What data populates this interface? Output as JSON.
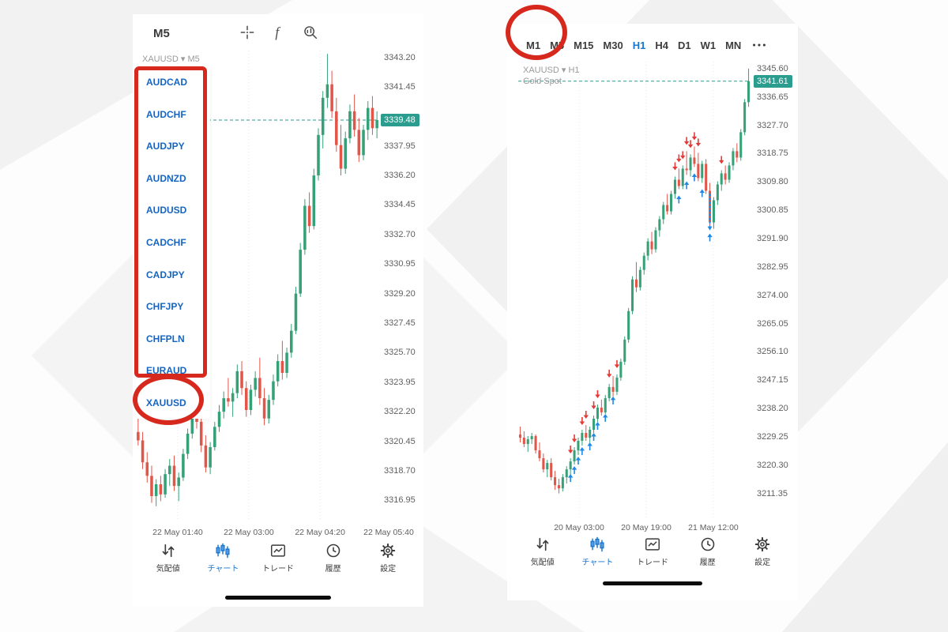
{
  "colors": {
    "up": "#36a077",
    "down": "#e25549",
    "price_line": "#2a9d8f",
    "badge_bg": "#2a9d8f",
    "active_blue": "#1976d2",
    "symbol_blue": "#1565c0",
    "annotation_red": "#d7281e",
    "arrow_red": "#e53935",
    "arrow_blue": "#1e88e5",
    "grid": "#e6e6e6"
  },
  "left": {
    "toolbar": {
      "timeframe": "M5",
      "icons": [
        {
          "name": "crosshair-icon"
        },
        {
          "name": "function-icon"
        },
        {
          "name": "objects-icon"
        }
      ]
    },
    "symbols": [
      "AUDCAD",
      "AUDCHF",
      "AUDJPY",
      "AUDNZD",
      "AUDUSD",
      "CADCHF",
      "CADJPY",
      "CHFJPY",
      "CHFPLN",
      "EURAUD",
      "XAUUSD"
    ]
  },
  "right": {
    "timeframes": [
      "M1",
      "M5",
      "M15",
      "M30",
      "H1",
      "H4",
      "D1",
      "W1",
      "MN"
    ],
    "active_timeframe": "H1",
    "more_icon": "more-icon"
  },
  "bottom_nav": {
    "active_index": 1,
    "items": [
      {
        "key": "quotes",
        "label": "気配値",
        "icon": "quotes-icon"
      },
      {
        "key": "chart",
        "label": "チャート",
        "icon": "chart-icon"
      },
      {
        "key": "trade",
        "label": "トレード",
        "icon": "trade-icon"
      },
      {
        "key": "history",
        "label": "履歴",
        "icon": "history-icon"
      },
      {
        "key": "settings",
        "label": "設定",
        "icon": "settings-icon"
      }
    ]
  },
  "chart_data": [
    {
      "type": "candlestick",
      "title": "XAUUSD M5",
      "symbol": "XAUUSD",
      "timeframe": "M5",
      "caption": "XAUUSD ▾ M5",
      "last_price": 3339.48,
      "ylim": [
        3315.7,
        3343.6
      ],
      "axis_prices": [
        3343.2,
        3341.45,
        3337.95,
        3336.2,
        3334.45,
        3332.7,
        3330.95,
        3329.2,
        3327.45,
        3325.7,
        3323.95,
        3322.2,
        3320.45,
        3318.7,
        3316.95
      ],
      "time_labels": [
        "22 May 01:40",
        "22 May 03:00",
        "22 May 04:20",
        "22 May 05:40"
      ],
      "time_fracs": [
        0.172,
        0.464,
        0.757,
        1.039
      ],
      "candles": [
        [
          3321,
          3322.2,
          3320.2,
          3320.5
        ],
        [
          3320.5,
          3321,
          3318.8,
          3319.2
        ],
        [
          3319.2,
          3319.8,
          3318,
          3318.4
        ],
        [
          3318.4,
          3319,
          3316.8,
          3317.2
        ],
        [
          3317.2,
          3318.2,
          3316.6,
          3317.9
        ],
        [
          3317.9,
          3318.4,
          3316.9,
          3317.3
        ],
        [
          3317.3,
          3318.8,
          3317.1,
          3318.5
        ],
        [
          3318.5,
          3319.4,
          3317.8,
          3319
        ],
        [
          3319,
          3319.6,
          3317.5,
          3317.8
        ],
        [
          3317.8,
          3318.6,
          3316.9,
          3318.3
        ],
        [
          3318.3,
          3320,
          3318.1,
          3319.7
        ],
        [
          3319.7,
          3321.2,
          3319.4,
          3320.9
        ],
        [
          3320.9,
          3322.8,
          3320.6,
          3322.4
        ],
        [
          3322.4,
          3323,
          3321.2,
          3321.6
        ],
        [
          3321.6,
          3322,
          3319.8,
          3320.2
        ],
        [
          3320.2,
          3320.8,
          3318.6,
          3318.9
        ],
        [
          3318.9,
          3320.4,
          3318.5,
          3320.1
        ],
        [
          3320.1,
          3321.6,
          3319.9,
          3321.3
        ],
        [
          3321.3,
          3322.6,
          3321,
          3322.2
        ],
        [
          3322.2,
          3323.4,
          3321.8,
          3323
        ],
        [
          3323,
          3324.2,
          3322.5,
          3322.8
        ],
        [
          3322.8,
          3323.6,
          3321.9,
          3323.3
        ],
        [
          3323.3,
          3325,
          3323,
          3324.6
        ],
        [
          3324.6,
          3325.2,
          3323.2,
          3323.6
        ],
        [
          3323.6,
          3324,
          3321.9,
          3322.3
        ],
        [
          3322.3,
          3323.8,
          3322,
          3323.5
        ],
        [
          3323.5,
          3324.6,
          3323.1,
          3324.2
        ],
        [
          3324.2,
          3325.4,
          3322.6,
          3323
        ],
        [
          3323,
          3323.6,
          3321.4,
          3321.8
        ],
        [
          3321.8,
          3323.2,
          3321.5,
          3322.9
        ],
        [
          3322.9,
          3324.4,
          3322.6,
          3324
        ],
        [
          3324,
          3325.6,
          3323.7,
          3325.2
        ],
        [
          3325.2,
          3326.4,
          3324.1,
          3324.5
        ],
        [
          3324.5,
          3326,
          3324.2,
          3325.7
        ],
        [
          3325.7,
          3327.4,
          3325.4,
          3327
        ],
        [
          3327,
          3329.6,
          3326.8,
          3329.2
        ],
        [
          3329.2,
          3332.2,
          3329,
          3331.8
        ],
        [
          3331.8,
          3334.8,
          3331.5,
          3334.4
        ],
        [
          3334.4,
          3335.2,
          3332.8,
          3333.2
        ],
        [
          3333.2,
          3336.6,
          3333,
          3336.2
        ],
        [
          3336.2,
          3339,
          3335.9,
          3338.6
        ],
        [
          3338.6,
          3341.2,
          3337.8,
          3340.8
        ],
        [
          3340.8,
          3343.4,
          3340.2,
          3341.6
        ],
        [
          3341.6,
          3342.4,
          3339.6,
          3340
        ],
        [
          3340,
          3340.8,
          3337.6,
          3338
        ],
        [
          3338,
          3339.2,
          3336.2,
          3336.6
        ],
        [
          3336.6,
          3338.8,
          3336.3,
          3338.4
        ],
        [
          3338.4,
          3340.4,
          3338.1,
          3340
        ],
        [
          3340,
          3341,
          3338.5,
          3338.9
        ],
        [
          3338.9,
          3339.6,
          3337,
          3337.4
        ],
        [
          3337.4,
          3339.2,
          3337.1,
          3338.9
        ],
        [
          3338.9,
          3340.6,
          3338.3,
          3340.2
        ],
        [
          3340.2,
          3340.9,
          3338.6,
          3339
        ],
        [
          3339,
          3340,
          3338.4,
          3339.48
        ]
      ]
    },
    {
      "type": "candlestick",
      "title": "XAUUSD H1 Gold Spot",
      "symbol": "XAUUSD",
      "timeframe": "H1",
      "caption": "XAUUSD ▾ H1",
      "subtitle": "Gold Spot",
      "last_price": 3341.61,
      "ylim": [
        3203.8,
        3347.8
      ],
      "axis_prices": [
        3345.6,
        3336.65,
        3327.7,
        3318.75,
        3309.8,
        3300.85,
        3291.9,
        3282.95,
        3274.0,
        3265.05,
        3256.1,
        3247.15,
        3238.2,
        3229.25,
        3220.3,
        3211.35
      ],
      "time_labels": [
        "20 May 03:00",
        "20 May 19:00",
        "21 May 12:00"
      ],
      "time_fracs": [
        0.262,
        0.551,
        0.84
      ],
      "candles": [
        [
          3230,
          3232.5,
          3227.5,
          3229
        ],
        [
          3229,
          3231,
          3226,
          3227
        ],
        [
          3227,
          3229.5,
          3224.5,
          3228.5
        ],
        [
          3228.5,
          3230.5,
          3227,
          3229.5
        ],
        [
          3229.5,
          3230,
          3224,
          3225
        ],
        [
          3225,
          3227.5,
          3221.5,
          3222.5
        ],
        [
          3222.5,
          3224,
          3218,
          3219
        ],
        [
          3219,
          3222,
          3216.5,
          3221
        ],
        [
          3221,
          3222.5,
          3215.5,
          3216.5
        ],
        [
          3216.5,
          3218.5,
          3212.5,
          3214
        ],
        [
          3214,
          3216,
          3211.4,
          3213
        ],
        [
          3213,
          3217.5,
          3212,
          3216.5
        ],
        [
          3216.5,
          3220,
          3214.5,
          3219
        ],
        [
          3219,
          3222.5,
          3217,
          3221.5
        ],
        [
          3221.5,
          3226,
          3220.5,
          3225
        ],
        [
          3225,
          3229,
          3223.5,
          3228
        ],
        [
          3228,
          3231.5,
          3226.5,
          3230.5
        ],
        [
          3230.5,
          3233,
          3228,
          3229
        ],
        [
          3229,
          3232.5,
          3227.5,
          3231.5
        ],
        [
          3231.5,
          3236,
          3230.5,
          3235
        ],
        [
          3235,
          3239.5,
          3234,
          3238.5
        ],
        [
          3238.5,
          3241,
          3236,
          3237
        ],
        [
          3237,
          3242.5,
          3236.5,
          3241.5
        ],
        [
          3241.5,
          3246,
          3240.5,
          3245
        ],
        [
          3245,
          3248.5,
          3242,
          3243.5
        ],
        [
          3243.5,
          3249,
          3242.5,
          3248
        ],
        [
          3248,
          3254,
          3247,
          3253
        ],
        [
          3253,
          3261,
          3252,
          3260
        ],
        [
          3260,
          3270,
          3259,
          3269
        ],
        [
          3269,
          3280,
          3268,
          3279
        ],
        [
          3279,
          3284.5,
          3275,
          3276.5
        ],
        [
          3276.5,
          3283,
          3275.5,
          3282
        ],
        [
          3282,
          3287.5,
          3280.5,
          3286.5
        ],
        [
          3286.5,
          3292,
          3285,
          3291
        ],
        [
          3291,
          3294,
          3287,
          3288.5
        ],
        [
          3288.5,
          3295.5,
          3287.5,
          3294.5
        ],
        [
          3294.5,
          3299,
          3292.5,
          3298
        ],
        [
          3298,
          3303.5,
          3296.5,
          3302.5
        ],
        [
          3302.5,
          3306,
          3299.5,
          3300.5
        ],
        [
          3300.5,
          3307,
          3299.5,
          3306
        ],
        [
          3306,
          3311.5,
          3304.5,
          3310.5
        ],
        [
          3310.5,
          3314,
          3307.5,
          3308.5
        ],
        [
          3308.5,
          3315,
          3307.5,
          3314
        ],
        [
          3314,
          3319.5,
          3312,
          3313.5
        ],
        [
          3313.5,
          3318.5,
          3311.5,
          3317.5
        ],
        [
          3317.5,
          3321,
          3314.5,
          3315.5
        ],
        [
          3315.5,
          3319,
          3310,
          3311
        ],
        [
          3311,
          3316.5,
          3309.5,
          3315.5
        ],
        [
          3315.5,
          3317,
          3306,
          3307
        ],
        [
          3307,
          3309.5,
          3295.5,
          3297
        ],
        [
          3297,
          3305,
          3295,
          3304
        ],
        [
          3304,
          3310,
          3302.5,
          3309
        ],
        [
          3309,
          3313.5,
          3307,
          3312.5
        ],
        [
          3312.5,
          3315,
          3309,
          3310.5
        ],
        [
          3310.5,
          3316,
          3309.5,
          3315
        ],
        [
          3315,
          3320.5,
          3313.5,
          3319.5
        ],
        [
          3319.5,
          3322,
          3316,
          3317.5
        ],
        [
          3317.5,
          3326.5,
          3316.5,
          3325.5
        ],
        [
          3325.5,
          3336,
          3324.5,
          3335
        ],
        [
          3335,
          3345.6,
          3333.5,
          3341.61
        ]
      ],
      "arrows": [
        {
          "i": 13,
          "d": "down",
          "p": 3224
        },
        {
          "i": 13,
          "d": "up",
          "p": 3217.5
        },
        {
          "i": 14,
          "d": "up",
          "p": 3220
        },
        {
          "i": 14,
          "d": "down",
          "p": 3227.5
        },
        {
          "i": 15,
          "d": "up",
          "p": 3223
        },
        {
          "i": 16,
          "d": "up",
          "p": 3226
        },
        {
          "i": 16,
          "d": "down",
          "p": 3233
        },
        {
          "i": 17,
          "d": "down",
          "p": 3235
        },
        {
          "i": 18,
          "d": "up",
          "p": 3227.5
        },
        {
          "i": 19,
          "d": "up",
          "p": 3230.5
        },
        {
          "i": 19,
          "d": "down",
          "p": 3238
        },
        {
          "i": 20,
          "d": "down",
          "p": 3241.5
        },
        {
          "i": 20,
          "d": "up",
          "p": 3234
        },
        {
          "i": 22,
          "d": "up",
          "p": 3236.5
        },
        {
          "i": 23,
          "d": "down",
          "p": 3248
        },
        {
          "i": 24,
          "d": "up",
          "p": 3242
        },
        {
          "i": 25,
          "d": "down",
          "p": 3251
        },
        {
          "i": 40,
          "d": "down",
          "p": 3313.5
        },
        {
          "i": 41,
          "d": "down",
          "p": 3316
        },
        {
          "i": 41,
          "d": "up",
          "p": 3305.5
        },
        {
          "i": 42,
          "d": "down",
          "p": 3317
        },
        {
          "i": 43,
          "d": "down",
          "p": 3321.5
        },
        {
          "i": 43,
          "d": "up",
          "p": 3310
        },
        {
          "i": 44,
          "d": "down",
          "p": 3320.5
        },
        {
          "i": 45,
          "d": "up",
          "p": 3312.5
        },
        {
          "i": 45,
          "d": "down",
          "p": 3323
        },
        {
          "i": 46,
          "d": "down",
          "p": 3321
        },
        {
          "i": 47,
          "d": "up",
          "p": 3307.5
        },
        {
          "i": 49,
          "d": "up",
          "p": 3293.5
        },
        {
          "i": 52,
          "d": "down",
          "p": 3315.5
        }
      ],
      "dashed_marker": {
        "i": 49,
        "from": 3306,
        "to": 3294.5
      }
    }
  ]
}
